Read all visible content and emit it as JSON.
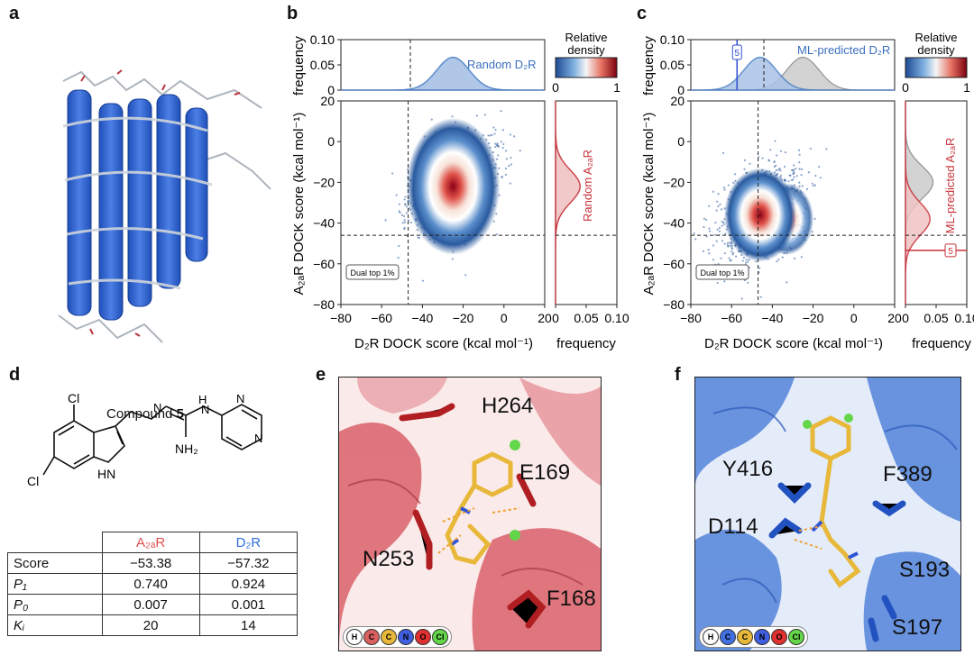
{
  "panels": {
    "a": "a",
    "b": "b",
    "c": "c",
    "d": "d",
    "e": "e",
    "f": "f"
  },
  "panel_b": {
    "top_legend": "Random D₂R",
    "right_legend": "Random A₂ₐR",
    "dual_label": "Dual top 1%",
    "xlabel": "D₂R DOCK score (kcal mol⁻¹)",
    "ylabel": "A₂ₐR DOCK score (kcal mol⁻¹)",
    "top_ylabel": "frequency",
    "right_xlabel": "frequency",
    "colorbar_title": [
      "Relative",
      "density"
    ],
    "colorbar_ticks": [
      "0",
      "1"
    ]
  },
  "panel_c": {
    "top_legend": "ML-predicted D₂R",
    "right_legend": "ML-predicted A₂ₐR",
    "dual_label": "Dual top 1%",
    "marker": "5",
    "xlabel": "D₂R DOCK score (kcal mol⁻¹)",
    "ylabel": "A₂ₐR DOCK score (kcal mol⁻¹)",
    "top_ylabel": "frequency",
    "right_xlabel": "frequency",
    "colorbar_title": [
      "Relative",
      "density"
    ],
    "colorbar_ticks": [
      "0",
      "1"
    ]
  },
  "axes": {
    "x_ticks": [
      "−80",
      "−60",
      "−40",
      "−20",
      "0",
      "20"
    ],
    "y_ticks": [
      "20",
      "0",
      "−20",
      "−40",
      "−60",
      "−80"
    ],
    "top_y_ticks": [
      "0.10",
      "0.05",
      "0"
    ],
    "right_x_ticks": [
      "0",
      "0.05",
      "0.10"
    ]
  },
  "panel_d": {
    "compound_label": "Compound",
    "compound_number": "5",
    "atoms": {
      "cl1": "Cl",
      "cl2": "Cl",
      "hn": "HN",
      "nh2": "NH₂",
      "n": "N",
      "h": "H",
      "h2": "H",
      "n3": "N",
      "n4": "N"
    },
    "table": {
      "col_headers": [
        "A₂ₐR",
        "D₂R"
      ],
      "rows": [
        {
          "label": "Score",
          "values": [
            "−53.38",
            "−57.32"
          ]
        },
        {
          "label": "P₁",
          "values": [
            "0.740",
            "0.924"
          ]
        },
        {
          "label": "P₀",
          "values": [
            "0.007",
            "0.001"
          ]
        },
        {
          "label": "Kᵢ",
          "values": [
            "20",
            "14"
          ]
        }
      ]
    }
  },
  "panel_e": {
    "residues": [
      "H264",
      "E169",
      "N253",
      "F168"
    ]
  },
  "panel_f": {
    "residues": [
      "Y416",
      "F389",
      "D114",
      "S193",
      "S197"
    ]
  },
  "atom_legend": [
    "H",
    "C",
    "C",
    "N",
    "O",
    "Cl"
  ],
  "colors": {
    "blue": "#3b6fbf",
    "red": "#c8323a",
    "a2ar": "#e05050",
    "d2r": "#2f6fdb",
    "protein_red": "#d9606a",
    "protein_blue": "#4a7dd8",
    "ligand": "#e8b83a"
  },
  "chart_data": [
    {
      "type": "scatter",
      "title": "",
      "xlabel": "D₂R DOCK score (kcal mol⁻¹)",
      "ylabel": "A₂ₐR DOCK score (kcal mol⁻¹)",
      "xlim": [
        -80,
        20
      ],
      "ylim": [
        -80,
        20
      ],
      "density_peak": [
        -25,
        -22
      ],
      "threshold_lines": {
        "x": -47,
        "y": -46
      },
      "top_marginal": {
        "name": "Random D₂R",
        "ylim": [
          0,
          0.1
        ],
        "peak_x": -25,
        "peak_y": 0.065
      },
      "right_marginal": {
        "name": "Random A₂ₐR",
        "xlim": [
          0,
          0.1
        ],
        "peak_y": -22,
        "peak_x": 0.04
      }
    },
    {
      "type": "scatter",
      "title": "",
      "xlabel": "D₂R DOCK score (kcal mol⁻¹)",
      "ylabel": "A₂ₐR DOCK score (kcal mol⁻¹)",
      "xlim": [
        -80,
        20
      ],
      "ylim": [
        -80,
        20
      ],
      "density_peak": [
        -46,
        -36
      ],
      "threshold_lines": {
        "x": -47,
        "y": -46
      },
      "compound_5": {
        "x": -57.32,
        "y": -53.38
      },
      "top_marginal": {
        "name": "ML-predicted D₂R",
        "ylim": [
          0,
          0.1
        ],
        "peak_x": -46,
        "peak_y": 0.065,
        "random_peak_x": -25,
        "random_peak_y": 0.065
      },
      "right_marginal": {
        "name": "ML-predicted A₂ₐR",
        "xlim": [
          0,
          0.1
        ],
        "peak_y": -38,
        "peak_x": 0.04
      }
    }
  ]
}
